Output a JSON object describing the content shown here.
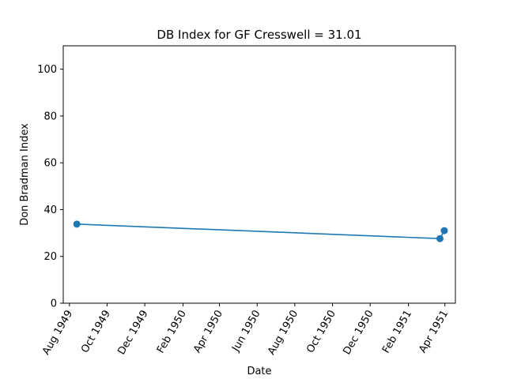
{
  "chart_data": {
    "type": "line",
    "title": "DB Index for GF Cresswell = 31.01",
    "xlabel": "Date",
    "ylabel": "Don Bradman Index",
    "xlim": [
      "1949-07-22",
      "1951-04-18"
    ],
    "ylim": [
      0,
      110
    ],
    "x_ticks": [
      {
        "date": "1949-08-01",
        "label": "Aug 1949"
      },
      {
        "date": "1949-10-01",
        "label": "Oct 1949"
      },
      {
        "date": "1949-12-01",
        "label": "Dec 1949"
      },
      {
        "date": "1950-02-01",
        "label": "Feb 1950"
      },
      {
        "date": "1950-04-01",
        "label": "Apr 1950"
      },
      {
        "date": "1950-06-01",
        "label": "Jun 1950"
      },
      {
        "date": "1950-08-01",
        "label": "Aug 1950"
      },
      {
        "date": "1950-10-01",
        "label": "Oct 1950"
      },
      {
        "date": "1950-12-01",
        "label": "Dec 1950"
      },
      {
        "date": "1951-02-01",
        "label": "Feb 1951"
      },
      {
        "date": "1951-04-01",
        "label": "Apr 1951"
      }
    ],
    "y_ticks": [
      0,
      20,
      40,
      60,
      80,
      100
    ],
    "grid": false,
    "series": [
      {
        "color": "#1f77b4",
        "x": [
          "1949-08-13",
          "1951-03-24",
          "1951-03-31"
        ],
        "y": [
          33.8,
          27.6,
          31.01
        ]
      }
    ]
  }
}
